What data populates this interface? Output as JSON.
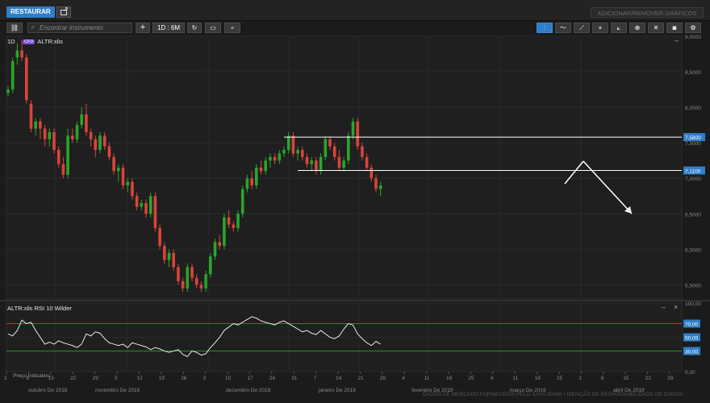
{
  "topbar": {
    "restore_label": "RESTAURAR",
    "add_remove_label": "ADICIONAR/REMOVER GRÁFICOS"
  },
  "toolbar": {
    "search_placeholder": "Encontrar instrumento",
    "timeframe_label": "1D : 6M",
    "add_icon": "plus-icon",
    "refresh_icon": "refresh-icon",
    "link_icon": "link-icon",
    "chart_type_icon": "candlestick-icon",
    "right_icons": [
      "chart-style-icon",
      "line-indicator-icon",
      "draw-line-icon",
      "crosshair-icon",
      "select-area-icon",
      "zoom-icon",
      "fit-icon",
      "camera-icon",
      "gear-icon"
    ]
  },
  "main_panel": {
    "period": "1D",
    "instrument_badge": "CFD",
    "instrument": "ALTR:xlis",
    "minimize": "–",
    "y_ticks": [
      "9,0000",
      "8,5000",
      "8,0000",
      "7,5000",
      "7,0000",
      "6,5000",
      "6,0000",
      "5,5000"
    ],
    "level_labels": [
      "7,5800",
      "7,1100"
    ]
  },
  "rsi_panel": {
    "title": "ALTR:xlis  RSI 10 Wilder",
    "minimize": "–",
    "close": "×",
    "y_ticks": [
      "100,00",
      "70,00",
      "50,00",
      "30,00",
      "0,00"
    ],
    "overbought": 70,
    "oversold": 30,
    "overlay_note": "Preço indicativo"
  },
  "x_axis": {
    "day_ticks": [
      "1",
      "8",
      "15",
      "22",
      "29",
      "5",
      "12",
      "19",
      "26",
      "3",
      "10",
      "17",
      "24",
      "31",
      "7",
      "14",
      "21",
      "28",
      "4",
      "11",
      "18",
      "25",
      "4",
      "11",
      "18",
      "25",
      "1",
      "8",
      "15",
      "22",
      "29"
    ],
    "months": [
      "outubro De 2018",
      "novembro De 2018",
      "dezembro De 2018",
      "janeiro De 2019",
      "fevereiro De 2019",
      "março De 2019",
      "abril De 2019"
    ]
  },
  "footer": "DADOS DE MERCADO FORNECIDOS PELO SAXO BANK • ISENÇÃO DE RESPONSABILIDADE DE DADOS",
  "colors": {
    "up": "#2aa52a",
    "down": "#d9443b",
    "accent": "#2f7fc8",
    "rsi_upper": "#c0392b",
    "rsi_lower": "#2e8b2e"
  },
  "chart_data": [
    {
      "type": "candlestick",
      "series": [
        {
          "name": "ALTR:xlis",
          "ohlc": [
            [
              8.2,
              8.3,
              8.15,
              8.25
            ],
            [
              8.25,
              8.7,
              8.2,
              8.65
            ],
            [
              8.7,
              8.9,
              8.6,
              8.8
            ],
            [
              8.8,
              8.95,
              8.65,
              8.7
            ],
            [
              8.7,
              8.75,
              8.05,
              8.1
            ],
            [
              8.05,
              8.1,
              7.65,
              7.7
            ],
            [
              7.7,
              7.85,
              7.6,
              7.8
            ],
            [
              7.8,
              7.85,
              7.55,
              7.7
            ],
            [
              7.7,
              7.75,
              7.45,
              7.55
            ],
            [
              7.55,
              7.7,
              7.45,
              7.65
            ],
            [
              7.65,
              7.7,
              7.35,
              7.4
            ],
            [
              7.4,
              7.45,
              7.15,
              7.2
            ],
            [
              7.2,
              7.3,
              7.0,
              7.05
            ],
            [
              7.05,
              7.7,
              7.0,
              7.6
            ],
            [
              7.6,
              7.7,
              7.5,
              7.55
            ],
            [
              7.55,
              7.8,
              7.5,
              7.75
            ],
            [
              7.75,
              8.0,
              7.7,
              7.9
            ],
            [
              7.9,
              8.05,
              7.6,
              7.65
            ],
            [
              7.65,
              7.7,
              7.45,
              7.55
            ],
            [
              7.55,
              7.6,
              7.3,
              7.4
            ],
            [
              7.4,
              7.65,
              7.35,
              7.6
            ],
            [
              7.6,
              7.65,
              7.4,
              7.45
            ],
            [
              7.45,
              7.5,
              7.25,
              7.3
            ],
            [
              7.3,
              7.35,
              7.05,
              7.1
            ],
            [
              7.1,
              7.2,
              6.95,
              7.15
            ],
            [
              7.15,
              7.2,
              6.85,
              6.9
            ],
            [
              6.9,
              7.0,
              6.8,
              6.95
            ],
            [
              6.95,
              7.0,
              6.7,
              6.75
            ],
            [
              6.75,
              6.8,
              6.55,
              6.6
            ],
            [
              6.6,
              6.7,
              6.55,
              6.65
            ],
            [
              6.65,
              6.7,
              6.45,
              6.5
            ],
            [
              6.5,
              6.8,
              6.45,
              6.75
            ],
            [
              6.75,
              6.8,
              6.25,
              6.3
            ],
            [
              6.3,
              6.35,
              6.0,
              6.05
            ],
            [
              6.05,
              6.1,
              5.8,
              5.85
            ],
            [
              5.85,
              6.0,
              5.75,
              5.95
            ],
            [
              5.95,
              6.0,
              5.7,
              5.75
            ],
            [
              5.75,
              5.8,
              5.5,
              5.55
            ],
            [
              5.55,
              5.6,
              5.4,
              5.45
            ],
            [
              5.45,
              5.8,
              5.4,
              5.75
            ],
            [
              5.75,
              5.8,
              5.55,
              5.6
            ],
            [
              5.6,
              5.65,
              5.45,
              5.5
            ],
            [
              5.5,
              5.55,
              5.4,
              5.45
            ],
            [
              5.45,
              5.7,
              5.4,
              5.65
            ],
            [
              5.65,
              5.95,
              5.6,
              5.9
            ],
            [
              5.9,
              6.15,
              5.85,
              6.1
            ],
            [
              6.1,
              6.2,
              6.0,
              6.05
            ],
            [
              6.05,
              6.5,
              6.0,
              6.45
            ],
            [
              6.45,
              6.55,
              6.3,
              6.35
            ],
            [
              6.35,
              6.4,
              6.25,
              6.3
            ],
            [
              6.3,
              6.55,
              6.25,
              6.5
            ],
            [
              6.5,
              6.9,
              6.45,
              6.85
            ],
            [
              6.85,
              7.05,
              6.8,
              7.0
            ],
            [
              7.0,
              7.1,
              6.85,
              6.9
            ],
            [
              6.9,
              7.2,
              6.85,
              7.15
            ],
            [
              7.15,
              7.25,
              7.05,
              7.1
            ],
            [
              7.1,
              7.3,
              7.05,
              7.25
            ],
            [
              7.25,
              7.35,
              7.15,
              7.3
            ],
            [
              7.3,
              7.35,
              7.2,
              7.25
            ],
            [
              7.25,
              7.4,
              7.2,
              7.35
            ],
            [
              7.35,
              7.45,
              7.3,
              7.4
            ],
            [
              7.4,
              7.65,
              7.35,
              7.6
            ],
            [
              7.6,
              7.65,
              7.3,
              7.35
            ],
            [
              7.35,
              7.45,
              7.25,
              7.4
            ],
            [
              7.4,
              7.45,
              7.25,
              7.3
            ],
            [
              7.3,
              7.35,
              7.15,
              7.2
            ],
            [
              7.2,
              7.3,
              7.1,
              7.25
            ],
            [
              7.25,
              7.3,
              7.05,
              7.1
            ],
            [
              7.1,
              7.35,
              7.05,
              7.3
            ],
            [
              7.3,
              7.6,
              7.25,
              7.55
            ],
            [
              7.55,
              7.6,
              7.4,
              7.45
            ],
            [
              7.45,
              7.5,
              7.25,
              7.3
            ],
            [
              7.3,
              7.4,
              7.1,
              7.15
            ],
            [
              7.15,
              7.3,
              7.1,
              7.25
            ],
            [
              7.25,
              7.65,
              7.2,
              7.6
            ],
            [
              7.6,
              7.85,
              7.55,
              7.8
            ],
            [
              7.8,
              7.85,
              7.4,
              7.45
            ],
            [
              7.45,
              7.5,
              7.25,
              7.3
            ],
            [
              7.3,
              7.35,
              7.1,
              7.15
            ],
            [
              7.15,
              7.2,
              6.95,
              7.0
            ],
            [
              7.0,
              7.05,
              6.8,
              6.85
            ],
            [
              6.85,
              6.95,
              6.75,
              6.9
            ]
          ]
        }
      ],
      "ylim": [
        5.3,
        9.0
      ],
      "y_ticks": [
        5.5,
        6.0,
        6.5,
        7.0,
        7.5,
        8.0,
        8.5,
        9.0
      ],
      "horizontal_lines": [
        7.58,
        7.11
      ],
      "grid": true
    },
    {
      "type": "line",
      "title": "ALTR:xlis  RSI 10 Wilder",
      "ylim": [
        0,
        100
      ],
      "y_ticks": [
        0,
        30,
        50,
        70,
        100
      ],
      "series": [
        {
          "values": [
            55,
            52,
            60,
            75,
            70,
            72,
            60,
            50,
            40,
            43,
            40,
            45,
            42,
            40,
            38,
            35,
            40,
            55,
            52,
            58,
            56,
            48,
            42,
            40,
            38,
            40,
            35,
            42,
            40,
            38,
            36,
            32,
            35,
            33,
            30,
            28,
            30,
            32,
            25,
            22,
            30,
            28,
            24,
            26,
            35,
            42,
            50,
            60,
            65,
            70,
            68,
            72,
            76,
            80,
            78,
            74,
            72,
            70,
            68,
            72,
            74,
            70,
            66,
            62,
            58,
            60,
            56,
            54,
            60,
            55,
            50,
            48,
            52,
            62,
            70,
            68,
            55,
            48,
            42,
            38,
            44,
            40
          ]
        }
      ]
    }
  ]
}
